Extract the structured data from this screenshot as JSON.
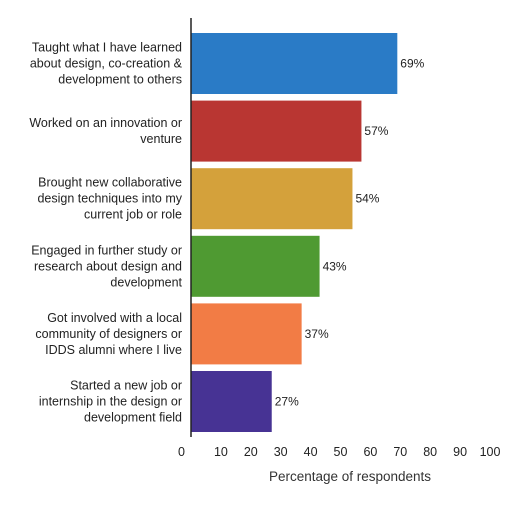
{
  "chart_data": {
    "type": "bar",
    "orientation": "horizontal",
    "categories": [
      "Taught what I have learned about design, co-creation & development to others",
      "Worked on an innovation or venture",
      "Brought new collaborative design techniques into my current job or role",
      "Engaged in further study or research about design and development",
      "Got involved with a local community of designers or IDDS alumni where I live",
      "Started a new job or internship in the design or development field"
    ],
    "category_lines": [
      [
        "Taught what I have learned",
        "about design, co-creation &",
        "development to others"
      ],
      [
        "Worked on an innovation or",
        "venture"
      ],
      [
        "Brought new collaborative",
        "design techniques into my",
        "current job or role"
      ],
      [
        "Engaged in further study or",
        "research about design and",
        "development"
      ],
      [
        "Got involved with a local",
        "community of designers or",
        "IDDS alumni where I live"
      ],
      [
        "Started a new job or",
        "internship in the design or",
        "development field"
      ]
    ],
    "values": [
      69,
      57,
      54,
      43,
      37,
      27
    ],
    "value_labels": [
      "69%",
      "57%",
      "54%",
      "43%",
      "37%",
      "27%"
    ],
    "colors": [
      "#2a7bc6",
      "#b93632",
      "#d4a13b",
      "#4f9a32",
      "#f27c45",
      "#473394"
    ],
    "xlim": [
      0,
      100
    ],
    "x_ticks": [
      0,
      10,
      20,
      30,
      40,
      50,
      60,
      70,
      80,
      90,
      100
    ],
    "xlabel": "Percentage of respondents",
    "title": "",
    "grid": false,
    "legend": "none"
  }
}
